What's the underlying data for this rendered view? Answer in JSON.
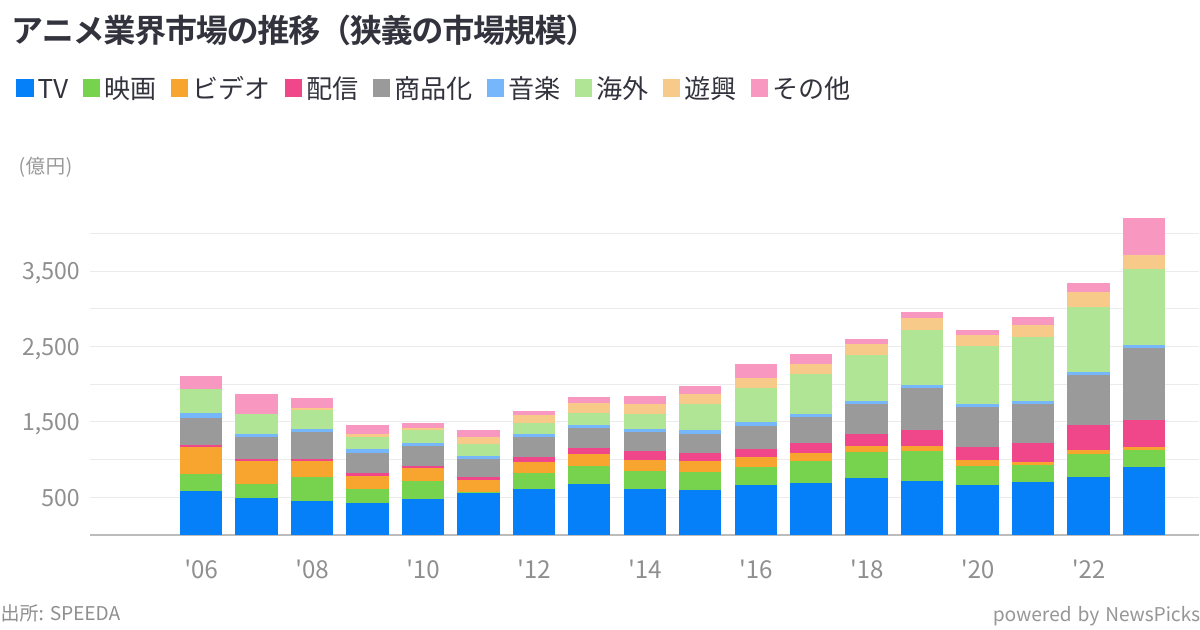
{
  "title": "アニメ業界市場の推移（狭義の市場規模）",
  "footer": {
    "source": "出所: SPEEDA",
    "credit": "powered by NewsPicks"
  },
  "chart_data": {
    "type": "bar",
    "stacked": true,
    "title": "アニメ業界市場の推移（狭義の市場規模）",
    "ylabel": "(億円)",
    "xlabel": "",
    "ylim": [
      0,
      4000
    ],
    "grid": true,
    "grid_step": 500,
    "legend_position": "top",
    "y_ticks": [
      {
        "value": 500,
        "label": "500"
      },
      {
        "value": 1500,
        "label": "1,500"
      },
      {
        "value": 2500,
        "label": "2,500"
      },
      {
        "value": 3500,
        "label": "3,500"
      }
    ],
    "categories": [
      2006,
      2007,
      2008,
      2009,
      2010,
      2011,
      2012,
      2013,
      2014,
      2015,
      2016,
      2017,
      2018,
      2019,
      2020,
      2021,
      2022,
      2023
    ],
    "x_ticks": [
      {
        "index": 0,
        "label": "'06"
      },
      {
        "index": 2,
        "label": "'08"
      },
      {
        "index": 4,
        "label": "'10"
      },
      {
        "index": 6,
        "label": "'12"
      },
      {
        "index": 8,
        "label": "'14"
      },
      {
        "index": 10,
        "label": "'16"
      },
      {
        "index": 12,
        "label": "'18"
      },
      {
        "index": 14,
        "label": "'20"
      },
      {
        "index": 16,
        "label": "'22"
      }
    ],
    "series": [
      {
        "key": "tv",
        "name": "TV",
        "color": "#0680f9",
        "values": [
          580,
          495,
          455,
          425,
          475,
          555,
          615,
          675,
          615,
          605,
          660,
          685,
          760,
          715,
          660,
          700,
          775,
          905
        ]
      },
      {
        "key": "movie",
        "name": "映画",
        "color": "#77d34d",
        "values": [
          225,
          185,
          320,
          190,
          245,
          15,
          205,
          245,
          230,
          230,
          250,
          295,
          340,
          405,
          260,
          225,
          295,
          230
        ]
      },
      {
        "key": "video",
        "name": "ビデオ",
        "color": "#f7a52e",
        "values": [
          370,
          300,
          210,
          175,
          170,
          155,
          150,
          155,
          150,
          150,
          120,
          105,
          80,
          60,
          75,
          50,
          55,
          35
        ]
      },
      {
        "key": "streaming",
        "name": "配信",
        "color": "#f0478a",
        "values": [
          25,
          30,
          25,
          35,
          30,
          40,
          70,
          80,
          115,
          105,
          115,
          135,
          155,
          215,
          180,
          250,
          340,
          360
        ]
      },
      {
        "key": "merchandising",
        "name": "商品化",
        "color": "#9a9a9a",
        "values": [
          355,
          285,
          360,
          265,
          260,
          240,
          265,
          260,
          260,
          255,
          305,
          345,
          405,
          555,
          530,
          520,
          660,
          945
        ]
      },
      {
        "key": "music",
        "name": "音楽",
        "color": "#76b6fa",
        "values": [
          70,
          40,
          40,
          55,
          45,
          40,
          35,
          40,
          35,
          45,
          45,
          45,
          40,
          40,
          35,
          40,
          40,
          45
        ]
      },
      {
        "key": "overseas",
        "name": "海外",
        "color": "#b0e596",
        "values": [
          315,
          270,
          255,
          160,
          170,
          165,
          150,
          170,
          195,
          350,
          460,
          530,
          610,
          725,
          765,
          840,
          865,
          1010
        ]
      },
      {
        "key": "amusement",
        "name": "遊興",
        "color": "#f8ca8a",
        "values": [
          0,
          0,
          25,
          40,
          30,
          95,
          105,
          125,
          140,
          125,
          130,
          125,
          150,
          165,
          145,
          165,
          190,
          180
        ]
      },
      {
        "key": "other",
        "name": "その他",
        "color": "#f897c0",
        "values": [
          165,
          265,
          125,
          115,
          65,
          85,
          55,
          80,
          110,
          110,
          180,
          140,
          65,
          75,
          65,
          105,
          125,
          490
        ]
      }
    ]
  }
}
